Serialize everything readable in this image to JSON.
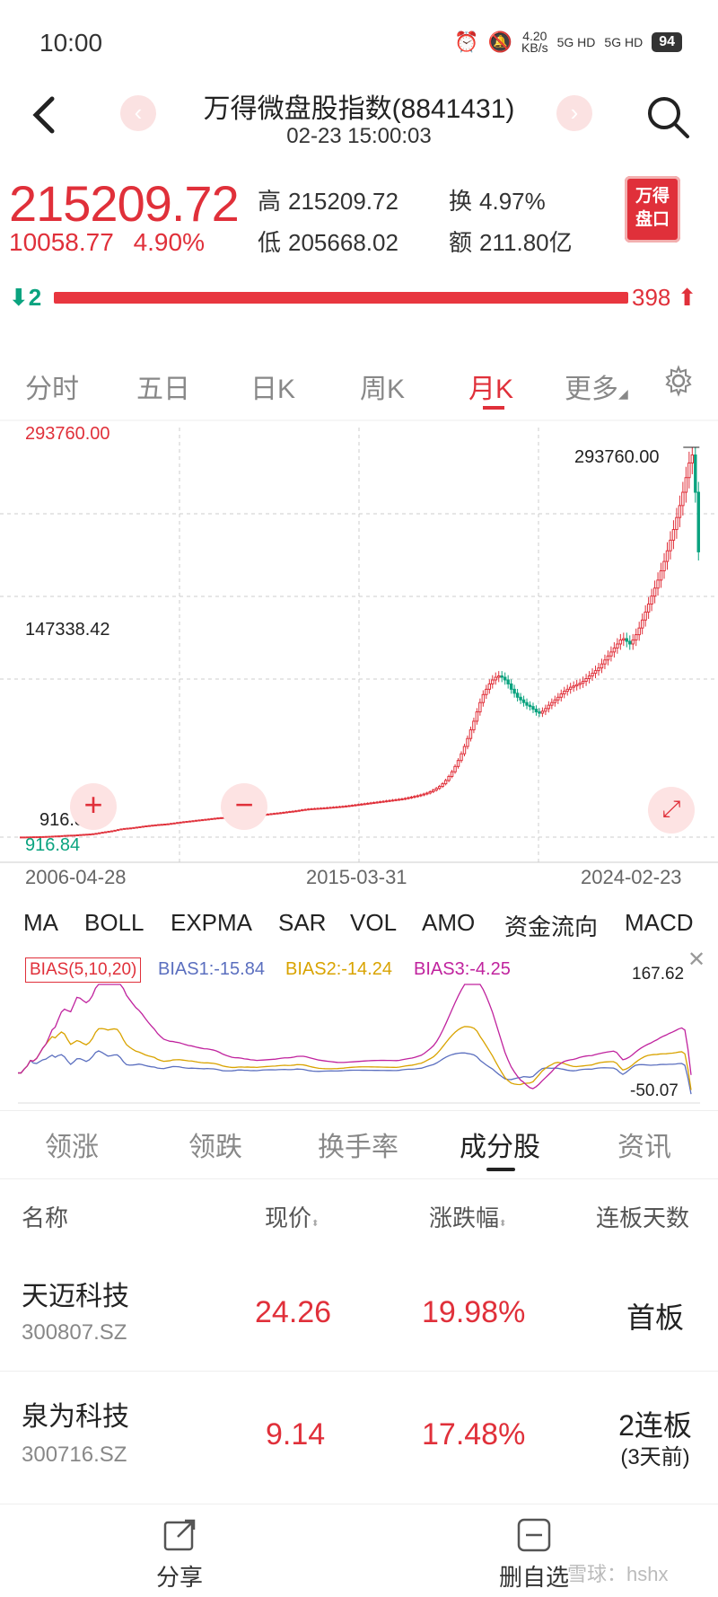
{
  "status": {
    "time": "10:00",
    "net_speed": "4.20\nKB/s",
    "signal1": "5G HD",
    "signal2": "5G HD",
    "battery": "94"
  },
  "header": {
    "title": "万得微盘股指数(8841431)",
    "subtitle": "02-23 15:00:03"
  },
  "quote": {
    "price": "215209.72",
    "change": "10058.77",
    "change_pct": "4.90%",
    "high_label": "高",
    "high": "215209.72",
    "low_label": "低",
    "low": "205668.02",
    "turnover_label": "换",
    "turnover": "4.97%",
    "amount_label": "额",
    "amount": "211.80亿",
    "logo_line1": "万得",
    "logo_line2": "盘口"
  },
  "breadth": {
    "down": "2",
    "up": "398"
  },
  "period_tabs": [
    "分时",
    "五日",
    "日K",
    "周K",
    "月K",
    "更多"
  ],
  "chart_labels": {
    "top": "293760.00",
    "mid": "147338.42",
    "max_annot": "293760.00",
    "min_annot": "916.84",
    "bottom": "916.84",
    "dates": [
      "2006-04-28",
      "2015-03-31",
      "2024-02-23"
    ]
  },
  "chart_data": {
    "type": "candlestick",
    "period": "monthly",
    "ylim": [
      916.84,
      293760.0
    ],
    "x_ticks": [
      "2006-04-28",
      "2015-03-31",
      "2024-02-23"
    ],
    "max": 293760.0,
    "min": 916.84,
    "close": [
      1000,
      1000,
      1050,
      1100,
      1180,
      1200,
      1250,
      1330,
      1420,
      1500,
      1620,
      1760,
      1850,
      2010,
      2180,
      2300,
      2360,
      2420,
      2600,
      2800,
      2950,
      3080,
      3220,
      3450,
      3750,
      4150,
      4550,
      4900,
      5250,
      5600,
      6050,
      6550,
      7050,
      7400,
      7600,
      7800,
      8100,
      8400,
      8700,
      9050,
      9350,
      9600,
      9850,
      10100,
      10350,
      10500,
      10700,
      10900,
      11200,
      11500,
      11850,
      12150,
      12450,
      12700,
      12950,
      13200,
      13500,
      13750,
      14000,
      14250,
      14500,
      14800,
      15050,
      15300,
      15500,
      15650,
      15750,
      15900,
      16050,
      16200,
      16400,
      16650,
      16850,
      17000,
      17200,
      17350,
      17550,
      17700,
      17950,
      18200,
      18450,
      18700,
      18950,
      19200,
      19500,
      19800,
      20100,
      20350,
      20650,
      21000,
      21400,
      21700,
      22000,
      22200,
      22350,
      22500,
      22650,
      22800,
      23000,
      23200,
      23400,
      23600,
      23800,
      24000,
      24250,
      24500,
      24800,
      25100,
      25400,
      25700,
      26000,
      26300,
      26600,
      26900,
      27200,
      27500,
      27800,
      28100,
      28400,
      28700,
      29000,
      29300,
      29600,
      30000,
      30500,
      31000,
      31500,
      32000,
      32600,
      33300,
      34000,
      35000,
      36200,
      37500,
      39000,
      41000,
      43500,
      46500,
      50000,
      54000,
      58500,
      63500,
      69000,
      75000,
      81500,
      88000,
      95000,
      102000,
      108000,
      112000,
      116000,
      119000,
      121000,
      122000,
      121000,
      119000,
      116000,
      112000,
      109000,
      106000,
      104000,
      102000,
      100000,
      99000,
      97000,
      95000,
      94000,
      95500,
      97500,
      100000,
      102000,
      104000,
      106000,
      108500,
      110500,
      112000,
      113500,
      114500,
      115500,
      116500,
      118000,
      120000,
      122000,
      124000,
      126000,
      128000,
      131000,
      134000,
      137000,
      140000,
      143000,
      146000,
      149000,
      150000,
      148000,
      146000,
      149000,
      153000,
      158000,
      164000,
      170000,
      176000,
      182000,
      188000,
      194000,
      201000,
      208000,
      216000,
      224000,
      232000,
      241000,
      250000,
      260000,
      271000,
      282000,
      288000,
      260000,
      215209.72
    ]
  },
  "indicator_tabs": [
    "MA",
    "BOLL",
    "EXPMA",
    "SAR",
    "VOL",
    "AMO",
    "资金流向",
    "MACD"
  ],
  "bias": {
    "name": "BIAS(5,10,20)",
    "b1": "BIAS1:-15.84",
    "b2": "BIAS2:-14.24",
    "b3": "BIAS3:-4.25",
    "top": "167.62",
    "bottom": "-50.07",
    "colors": {
      "b1": "#5b6fbf",
      "b2": "#d9a300",
      "b3": "#c0239e"
    }
  },
  "list_tabs": [
    "领涨",
    "领跌",
    "换手率",
    "成分股",
    "资讯"
  ],
  "table": {
    "headers": [
      "名称",
      "现价",
      "涨跌幅",
      "连板天数"
    ],
    "rows": [
      {
        "name": "天迈科技",
        "code": "300807.SZ",
        "price": "24.26",
        "pct": "19.98%",
        "board": "首板",
        "board_sub": ""
      },
      {
        "name": "泉为科技",
        "code": "300716.SZ",
        "price": "9.14",
        "pct": "17.48%",
        "board": "2连板",
        "board_sub": "(3天前)"
      }
    ]
  },
  "bottom": {
    "share": "分享",
    "remove": "删自选",
    "watermark": "雪球：hshx"
  }
}
